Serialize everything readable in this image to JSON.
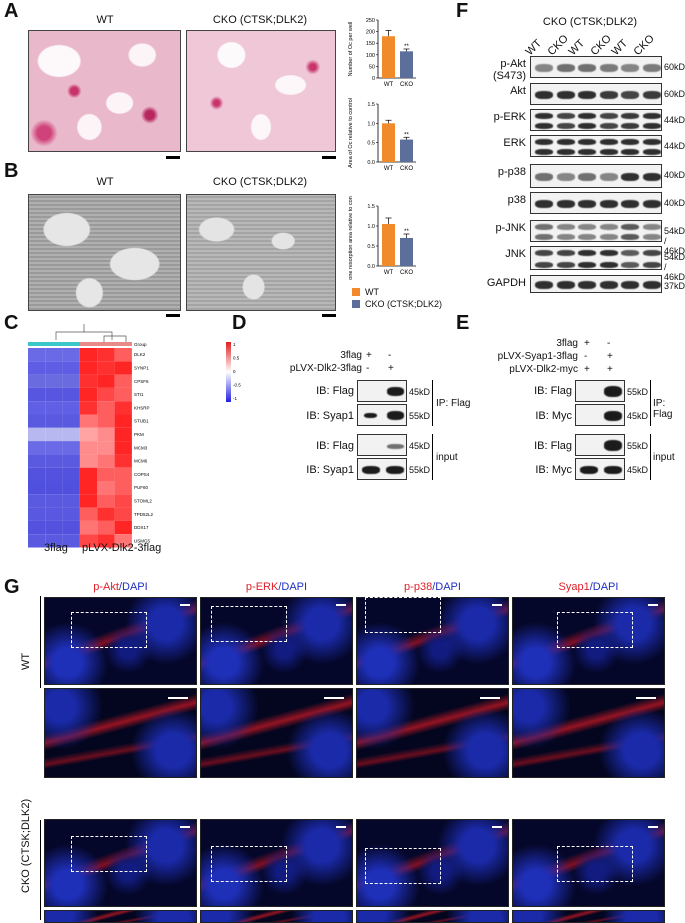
{
  "panels": {
    "A": {
      "label": "A",
      "img_labels": [
        "WT",
        "CKO (CTSK;DLK2)"
      ],
      "chart1": {
        "type": "bar",
        "categories": [
          "WT",
          "CKO"
        ],
        "values": [
          180,
          115
        ],
        "errors": [
          25,
          10
        ],
        "ylabel": "Number of Oc per well",
        "ylim": [
          0,
          250
        ],
        "yticks": [
          "0",
          "50",
          "100",
          "150",
          "200",
          "250"
        ],
        "sig": "**"
      },
      "chart2": {
        "type": "bar",
        "categories": [
          "WT",
          "CKO"
        ],
        "values": [
          1.0,
          0.58
        ],
        "errors": [
          0.08,
          0.06
        ],
        "ylabel": "Area of Oc relative to control",
        "ylim": [
          0,
          1.5
        ],
        "yticks": [
          "0.0",
          "0.5",
          "1.0",
          "1.5"
        ],
        "sig": "**"
      }
    },
    "B": {
      "label": "B",
      "img_labels": [
        "WT",
        "CKO (CTSK;DLK2)"
      ],
      "chart": {
        "type": "bar",
        "categories": [
          "WT",
          "CKO"
        ],
        "values": [
          1.05,
          0.7
        ],
        "errors": [
          0.15,
          0.1
        ],
        "ylabel": "Bone resorption area relative to control",
        "ylim": [
          0,
          1.5
        ],
        "yticks": [
          "0.0",
          "0.5",
          "1.0",
          "1.5"
        ],
        "sig": "**"
      },
      "legend": [
        {
          "name": "WT",
          "color": "#f08a2a"
        },
        {
          "name": "CKO (CTSK;DLK2)",
          "color": "#5b6f9a"
        }
      ]
    },
    "C": {
      "label": "C",
      "genes": [
        "DLK2",
        "SYNP1",
        "CPSF6",
        "STI1",
        "KHSRP",
        "STUB1",
        "PKM",
        "MCM3",
        "MCM6",
        "COPS4",
        "PUF60",
        "STOML2",
        "TPD52L2",
        "DDX17",
        "USMG5"
      ],
      "group_label": "Group",
      "xlabels": [
        "3flag",
        "pLVX-Dlk2-3flag"
      ],
      "scale": [
        "1",
        "0.5",
        "0",
        "-0.5",
        "-1"
      ]
    },
    "D": {
      "label": "D",
      "rows_top": [
        {
          "name": "3flag",
          "vals": [
            "+",
            "-"
          ]
        },
        {
          "name": "pLVX-Dlk2-3flag",
          "vals": [
            "-",
            "+"
          ]
        }
      ],
      "blots": [
        {
          "ib": "IB: Flag",
          "kd": "45kD"
        },
        {
          "ib": "IB: Syap1",
          "kd": "55kD"
        },
        {
          "ib": "IB: Flag",
          "kd": "45kD"
        },
        {
          "ib": "IB: Syap1",
          "kd": "55kD"
        }
      ],
      "groups": [
        "IP: Flag",
        "input"
      ]
    },
    "E": {
      "label": "E",
      "rows_top": [
        {
          "name": "3flag",
          "vals": [
            "+",
            "-"
          ]
        },
        {
          "name": "pLVX-Syap1-3flag",
          "vals": [
            "-",
            "+"
          ]
        },
        {
          "name": "pLVX-Dlk2-myc",
          "vals": [
            "+",
            "+"
          ]
        }
      ],
      "blots": [
        {
          "ib": "IB: Flag",
          "kd": "55kD"
        },
        {
          "ib": "IB: Myc",
          "kd": "45kD"
        },
        {
          "ib": "IB: Flag",
          "kd": "55kD"
        },
        {
          "ib": "IB: Myc",
          "kd": "45kD"
        }
      ],
      "groups": [
        "IP: Flag",
        "input"
      ]
    },
    "F": {
      "label": "F",
      "title": "CKO (CTSK;DLK2)",
      "lanes": [
        "WT",
        "CKO",
        "WT",
        "CKO",
        "WT",
        "CKO"
      ],
      "rows": [
        {
          "name": "p-Akt (S473)",
          "kd": "60kD"
        },
        {
          "name": "Akt",
          "kd": "60kD"
        },
        {
          "name": "p-ERK",
          "kd": "44kD"
        },
        {
          "name": "ERK",
          "kd": "44kD"
        },
        {
          "name": "p-p38",
          "kd": "40kD"
        },
        {
          "name": "p38",
          "kd": "40kD"
        },
        {
          "name": "p-JNK",
          "kd": "54kD / 46kD"
        },
        {
          "name": "JNK",
          "kd": "54kD / 46kD"
        },
        {
          "name": "GAPDH",
          "kd": "37kD"
        }
      ]
    },
    "G": {
      "label": "G",
      "columns": [
        {
          "marker": "p-Akt",
          "stain": "DAPI"
        },
        {
          "marker": "p-ERK",
          "stain": "DAPI"
        },
        {
          "marker": "p-p38",
          "stain": "DAPI"
        },
        {
          "marker": "Syap1",
          "stain": "DAPI"
        }
      ],
      "row_labels": [
        "WT",
        "CKO (CTSK;DLK2)"
      ],
      "marker_color": "#e0202a",
      "stain_color": "#2030c0"
    }
  }
}
